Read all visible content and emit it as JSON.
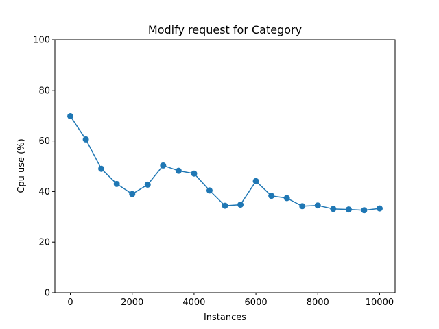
{
  "chart_data": {
    "type": "line",
    "title": "Modify request for Category",
    "xlabel": "Instances",
    "ylabel": "Cpu use (%)",
    "xlim": [
      -500,
      10500
    ],
    "ylim": [
      0,
      100
    ],
    "xticks": [
      0,
      2000,
      4000,
      6000,
      8000,
      10000
    ],
    "yticks": [
      0,
      20,
      40,
      60,
      80,
      100
    ],
    "grid": false,
    "series": [
      {
        "color": "#1f77b4",
        "marker": "circle",
        "x": [
          0,
          500,
          1000,
          1500,
          2000,
          2500,
          3000,
          3500,
          4000,
          4500,
          5000,
          5500,
          6000,
          6500,
          7000,
          7500,
          8000,
          8500,
          9000,
          9500,
          10000
        ],
        "values": [
          69.8,
          60.6,
          49.0,
          43.0,
          39.0,
          42.7,
          50.3,
          48.2,
          47.1,
          40.4,
          34.4,
          34.8,
          44.1,
          38.3,
          37.4,
          34.2,
          34.5,
          33.1,
          32.9,
          32.6,
          33.3
        ]
      }
    ]
  }
}
